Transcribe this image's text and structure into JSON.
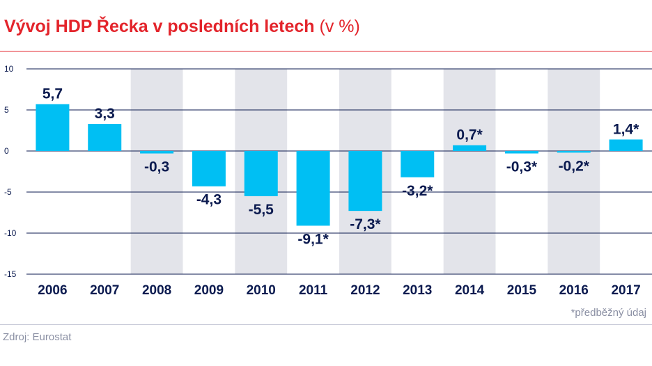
{
  "title": {
    "main": "Vývoj HDP Řecka v posledních letech",
    "unit": "(v %)"
  },
  "footnote": "*předběžný údaj",
  "source": "Zdroj: Eurostat",
  "colors": {
    "title": "#e3242b",
    "bar": "#00bff3",
    "band": "#e3e4ea",
    "grid": "#0b1a4f",
    "text": "#0b1a4f"
  },
  "chart_data": {
    "type": "bar",
    "categories": [
      "2006",
      "2007",
      "2008",
      "2009",
      "2010",
      "2011",
      "2012",
      "2013",
      "2014",
      "2015",
      "2016",
      "2017"
    ],
    "values": [
      5.7,
      3.3,
      -0.3,
      -4.3,
      -5.5,
      -9.1,
      -7.3,
      -3.2,
      0.7,
      -0.3,
      -0.2,
      1.4
    ],
    "data_labels": [
      "5,7",
      "3,3",
      "-0,3",
      "-4,3",
      "-5,5",
      "-9,1*",
      "-7,3*",
      "-3,2*",
      "0,7*",
      "-0,3*",
      "-0,2*",
      "1,4*"
    ],
    "yticks": [
      10,
      5,
      0,
      -5,
      -10,
      -15
    ],
    "ytick_labels": [
      "10",
      "5",
      "0",
      "-5",
      "-10",
      "-15"
    ],
    "ylim": [
      -15,
      10
    ],
    "shaded_categories": [
      "2008",
      "2010",
      "2012",
      "2014",
      "2016"
    ],
    "grid": true,
    "legend": "none"
  }
}
